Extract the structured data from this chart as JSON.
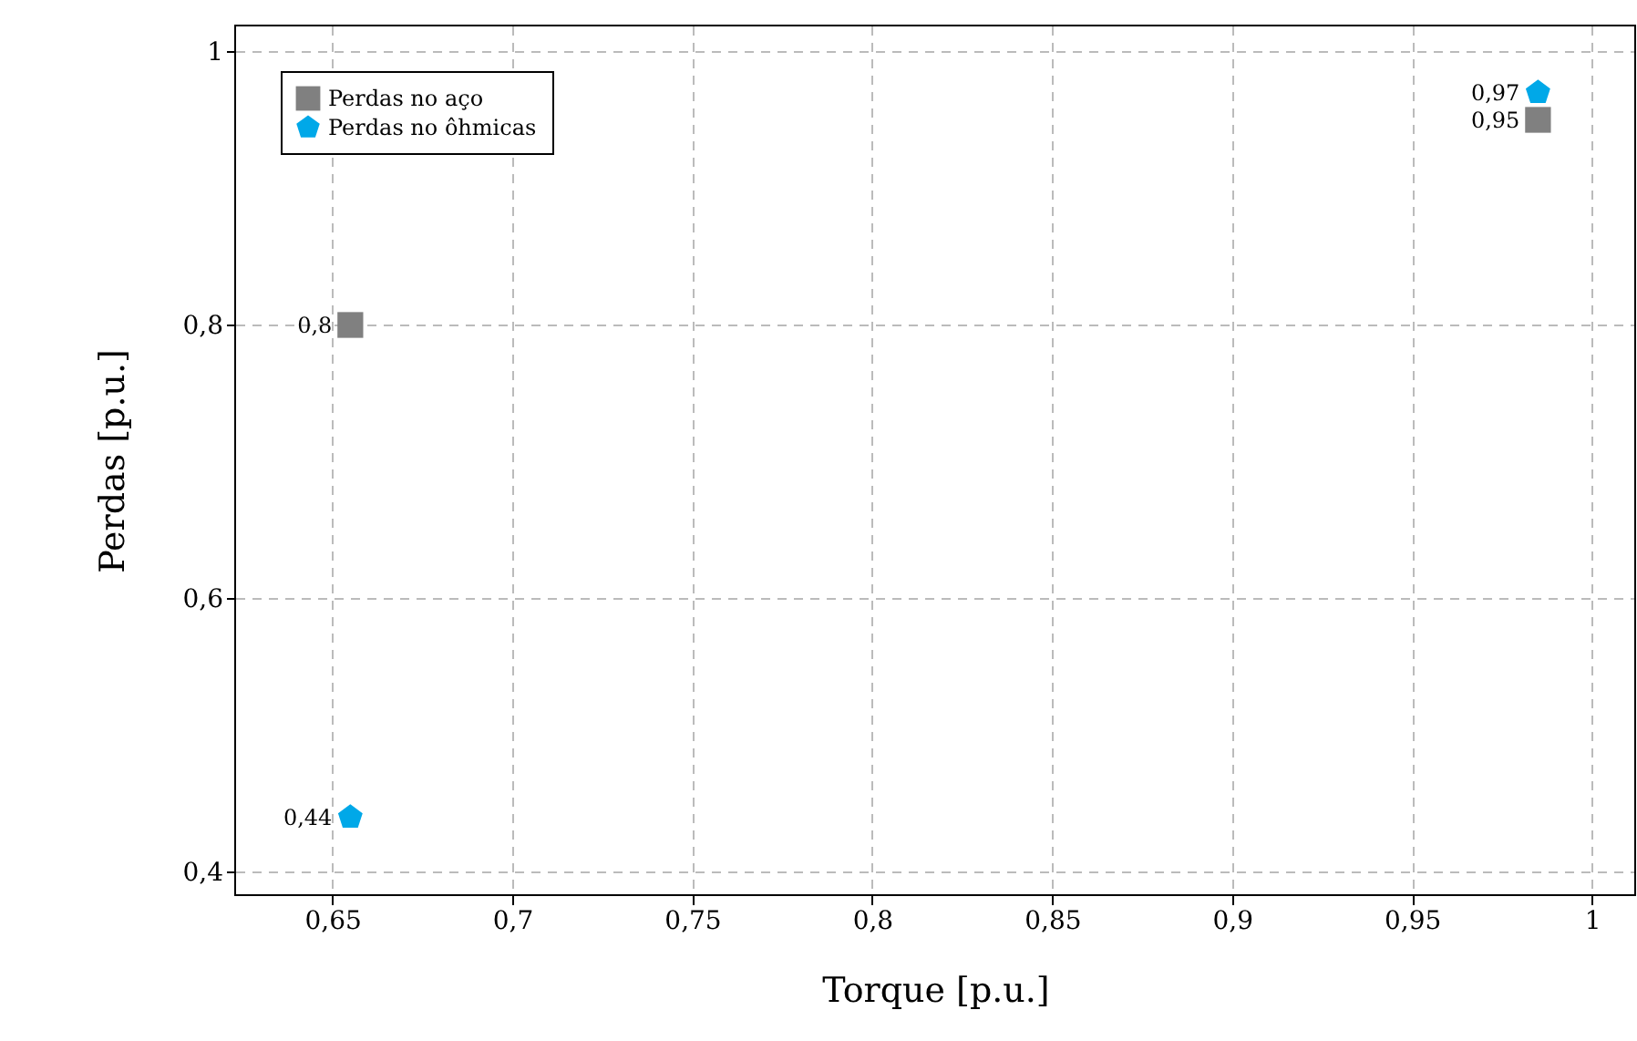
{
  "chart_data": {
    "type": "scatter",
    "xlabel": "Torque [p.u.]",
    "ylabel": "Perdas [p.u.]",
    "series": [
      {
        "name": "Perdas no aço",
        "color": "#808080",
        "marker": "square",
        "values": [
          0.8,
          0.95
        ],
        "value_labels": [
          "0,8",
          "0,95"
        ]
      },
      {
        "name": "Perdas no ôhmicas",
        "color": "#00a8e8",
        "values": [
          0.44,
          0.97
        ],
        "value_labels": [
          "0,44",
          "0,97"
        ]
      }
    ],
    "x": [
      0.655,
      0.985
    ],
    "xlim": [
      0.623,
      1.012
    ],
    "ylim": [
      0.383,
      1.019
    ],
    "xticks": [
      {
        "value": 0.65,
        "label": "0,65"
      },
      {
        "value": 0.7,
        "label": "0,7"
      },
      {
        "value": 0.75,
        "label": "0,75"
      },
      {
        "value": 0.8,
        "label": "0,8"
      },
      {
        "value": 0.85,
        "label": "0,85"
      },
      {
        "value": 0.9,
        "label": "0,9"
      },
      {
        "value": 0.95,
        "label": "0,95"
      },
      1
    ],
    "yticks": [
      {
        "value": 0.4,
        "label": "0,4"
      },
      {
        "value": 0.6,
        "label": "0,6"
      },
      {
        "value": 0.8,
        "label": "0,8"
      },
      1
    ],
    "grid": true,
    "line_style": "dashed",
    "legend": "top left"
  }
}
